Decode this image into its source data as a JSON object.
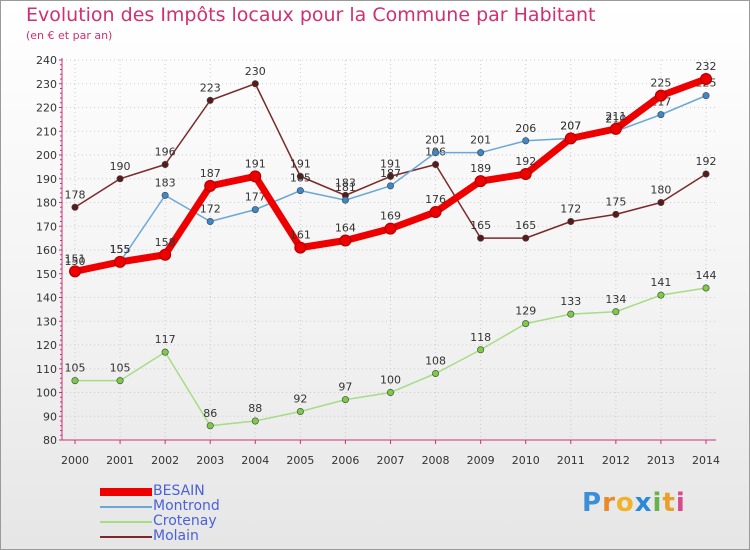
{
  "header": {
    "title": "Evolution des Impôts locaux pour la Commune par Habitant",
    "subtitle": "(en € et par an)"
  },
  "logo": {
    "text": "Proxiti"
  },
  "colors": {
    "title": "#d03070",
    "axis": "#d03070",
    "grid": "#cccccc"
  },
  "chart_data": {
    "type": "line",
    "title": "Evolution des Impôts locaux pour la Commune par Habitant",
    "subtitle": "(en € et par an)",
    "xlabel": "",
    "ylabel": "",
    "ylim": [
      80,
      240
    ],
    "yticks": [
      80,
      90,
      100,
      110,
      120,
      130,
      140,
      150,
      160,
      170,
      180,
      190,
      200,
      210,
      220,
      230,
      240
    ],
    "grid": true,
    "legend_position": "bottom-left",
    "x": [
      "2000",
      "2001",
      "2002",
      "2003",
      "2004",
      "2005",
      "2006",
      "2007",
      "2008",
      "2009",
      "2010",
      "2011",
      "2012",
      "2013",
      "2014"
    ],
    "series": [
      {
        "name": "Molain",
        "color": "#7a2a2a",
        "marker": "#5a1a1a",
        "values": [
          178,
          190,
          196,
          223,
          230,
          191,
          183,
          191,
          196,
          165,
          165,
          172,
          175,
          180,
          192
        ]
      },
      {
        "name": "Crotenay",
        "color": "#a6dc84",
        "marker": "#7acc44",
        "values": [
          105,
          105,
          117,
          86,
          88,
          92,
          97,
          100,
          108,
          118,
          129,
          133,
          134,
          141,
          144
        ]
      },
      {
        "name": "Montrond",
        "color": "#6aa8d8",
        "marker": "#3c88c8",
        "values": [
          150,
          155,
          183,
          172,
          177,
          185,
          181,
          187,
          201,
          201,
          206,
          207,
          210,
          217,
          225
        ]
      },
      {
        "name": "BESAIN",
        "color": "#ee0000",
        "marker": "#ee0000",
        "values": [
          151,
          155,
          158,
          187,
          191,
          161,
          164,
          169,
          176,
          189,
          192,
          207,
          211,
          225,
          232
        ]
      }
    ]
  }
}
